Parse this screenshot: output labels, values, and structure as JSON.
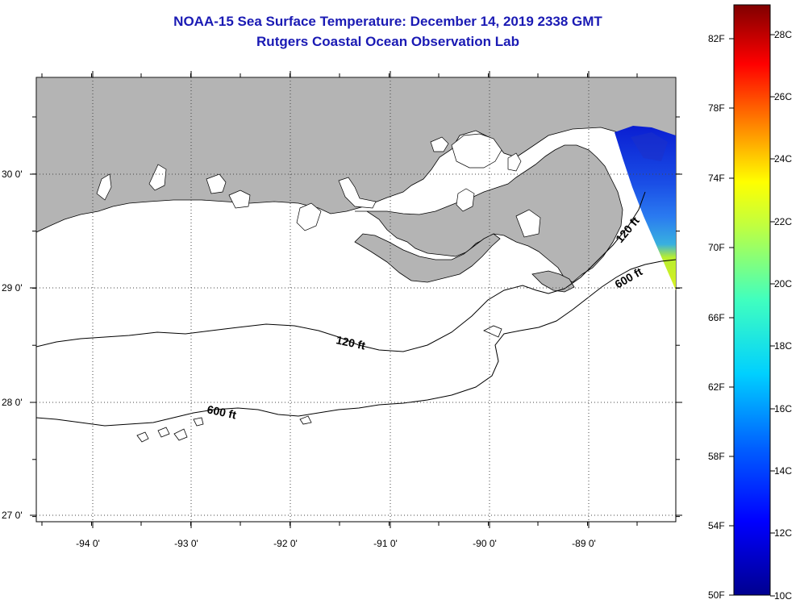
{
  "header": {
    "title_line1": "NOAA-15 Sea Surface Temperature:  December 14, 2019 2338 GMT",
    "title_line2": "Rutgers Coastal Ocean Observation Lab"
  },
  "map": {
    "lon_labels": [
      "-94 0'",
      "-93 0'",
      "-92 0'",
      "-91 0'",
      "-90 0'",
      "-89 0'"
    ],
    "lat_labels": [
      "30 0'",
      "29 0'",
      "28 0'",
      "27 0'"
    ],
    "contours": [
      {
        "label": "120 ft",
        "depth_ft": 120
      },
      {
        "label": "600 ft",
        "depth_ft": 600
      }
    ],
    "colors": {
      "land": "#b4b4b4",
      "ocean_nodata": "#ffffff",
      "contour": "#000000"
    }
  },
  "colorbar": {
    "f_labels": [
      "82F",
      "78F",
      "74F",
      "70F",
      "66F",
      "62F",
      "58F",
      "54F",
      "50F"
    ],
    "c_labels": [
      "28C",
      "26C",
      "24C",
      "22C",
      "20C",
      "18C",
      "16C",
      "14C",
      "12C",
      "10C"
    ]
  }
}
